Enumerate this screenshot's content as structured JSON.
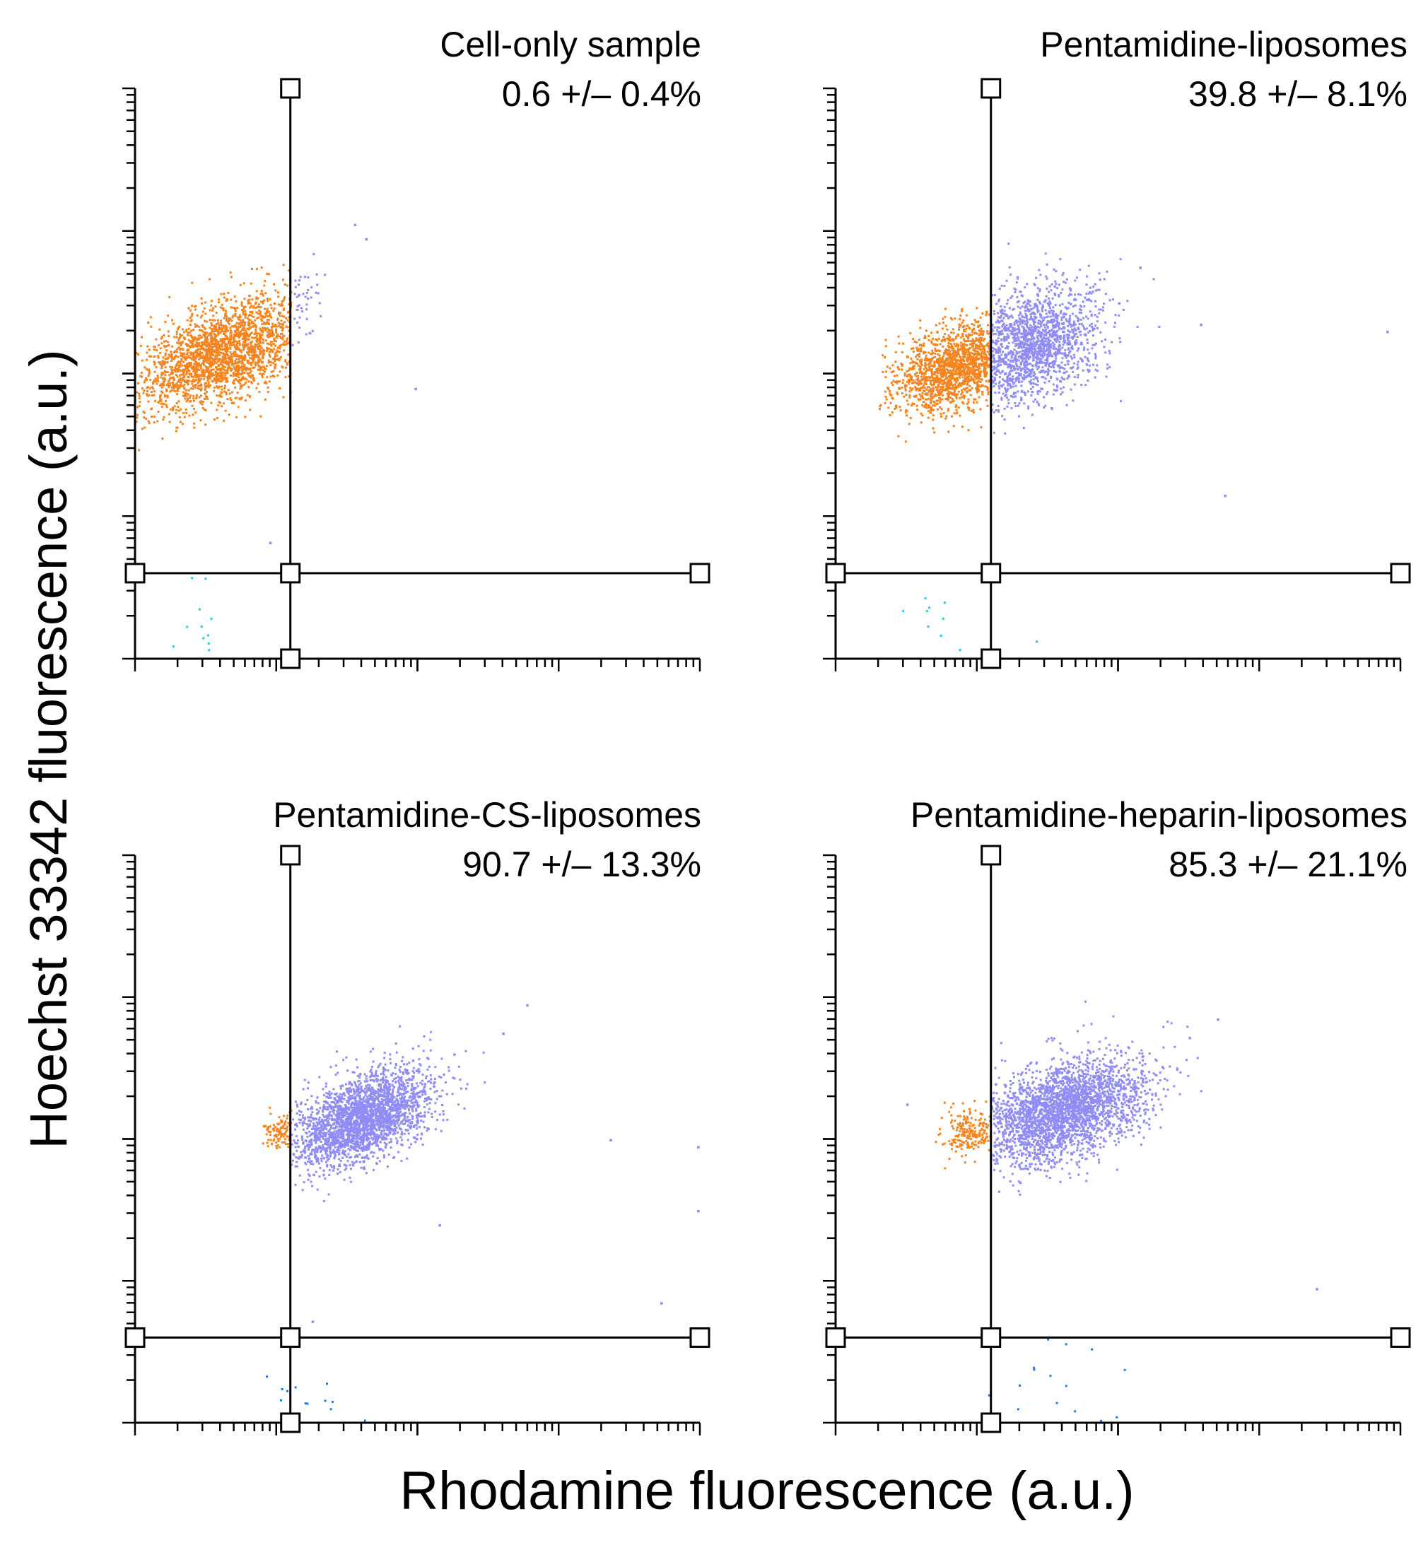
{
  "figure": {
    "x_axis_label": "Rhodamine fluorescence (a.u.)",
    "y_axis_label": "Hoechst 33342 fluorescence (a.u.)"
  },
  "colors": {
    "gate_negative": "#f5841f",
    "gate_positive": "#8f8cf5",
    "debris": "#1fcde0",
    "debris_dark": "#1a7ef0",
    "axis": "#000000"
  },
  "chart_data": [
    {
      "type": "scatter",
      "title": "Cell-only sample",
      "value_label": "0.6 +/– 0.4%",
      "x_scale": "log",
      "y_scale": "log",
      "x_range_decades": [
        0,
        4
      ],
      "y_range_decades": [
        0,
        4
      ],
      "gate_x_decade": 1.1,
      "gate_y_decade": 0.6,
      "populations": [
        {
          "name": "rhodamine-negative",
          "color": "gate_negative",
          "x_center": 0.62,
          "y_center": 2.15,
          "x_spread": 0.3,
          "y_spread": 0.17,
          "tilt": 0.35,
          "count": 2200,
          "x_min": 0.0,
          "x_max": 1.1
        },
        {
          "name": "rhodamine-positive",
          "color": "gate_positive",
          "x_center": 1.18,
          "y_center": 2.5,
          "x_spread": 0.08,
          "y_spread": 0.12,
          "tilt": 0.3,
          "count": 45,
          "x_min": 1.1,
          "x_max": 1.6
        },
        {
          "name": "debris",
          "color": "debris",
          "x_center": 0.45,
          "y_center": 0.22,
          "x_spread": 0.2,
          "y_spread": 0.12,
          "tilt": 0,
          "count": 12,
          "x_min": 0.1,
          "x_max": 1.3
        }
      ],
      "outliers": [
        [
          1.55,
          3.05
        ],
        [
          1.63,
          2.95
        ],
        [
          1.98,
          1.9
        ],
        [
          0.95,
          0.82
        ]
      ]
    },
    {
      "type": "scatter",
      "title": "Pentamidine-liposomes",
      "value_label": "39.8 +/– 8.1%",
      "x_scale": "log",
      "y_scale": "log",
      "x_range_decades": [
        0,
        4
      ],
      "y_range_decades": [
        0,
        4
      ],
      "gate_x_decade": 1.1,
      "gate_y_decade": 0.6,
      "populations": [
        {
          "name": "rhodamine-negative",
          "color": "gate_negative",
          "x_center": 0.85,
          "y_center": 2.05,
          "x_spread": 0.22,
          "y_spread": 0.14,
          "tilt": 0.3,
          "count": 1500,
          "x_min": 0.3,
          "x_max": 1.1
        },
        {
          "name": "rhodamine-positive",
          "color": "gate_positive",
          "x_center": 1.35,
          "y_center": 2.2,
          "x_spread": 0.25,
          "y_spread": 0.2,
          "tilt": 0.25,
          "count": 1600,
          "x_min": 1.1,
          "x_max": 2.4
        },
        {
          "name": "debris",
          "color": "debris",
          "x_center": 0.75,
          "y_center": 0.25,
          "x_spread": 0.25,
          "y_spread": 0.12,
          "tilt": 0,
          "count": 10,
          "x_min": 0.3,
          "x_max": 1.6
        }
      ],
      "outliers": [
        [
          2.15,
          2.75
        ],
        [
          3.9,
          2.3
        ],
        [
          2.75,
          1.15
        ],
        [
          2.58,
          2.35
        ],
        [
          2.0,
          2.5
        ]
      ]
    },
    {
      "type": "scatter",
      "title": "Pentamidine-CS-liposomes",
      "value_label": "90.7 +/– 13.3%",
      "x_scale": "log",
      "y_scale": "log",
      "x_range_decades": [
        0,
        4
      ],
      "y_range_decades": [
        0,
        4
      ],
      "gate_x_decade": 1.1,
      "gate_y_decade": 0.6,
      "populations": [
        {
          "name": "rhodamine-negative",
          "color": "gate_negative",
          "x_center": 1.02,
          "y_center": 2.05,
          "x_spread": 0.07,
          "y_spread": 0.06,
          "tilt": 0,
          "count": 110,
          "x_min": 0.9,
          "x_max": 1.1
        },
        {
          "name": "rhodamine-positive",
          "color": "gate_positive",
          "x_center": 1.6,
          "y_center": 2.15,
          "x_spread": 0.25,
          "y_spread": 0.15,
          "tilt": 0.35,
          "count": 2600,
          "x_min": 1.1,
          "x_max": 2.6
        },
        {
          "name": "debris",
          "color": "debris_dark",
          "x_center": 1.2,
          "y_center": 0.2,
          "x_spread": 0.25,
          "y_spread": 0.12,
          "tilt": 0,
          "count": 14,
          "x_min": 0.8,
          "x_max": 1.7
        }
      ],
      "outliers": [
        [
          2.77,
          2.95
        ],
        [
          2.6,
          2.75
        ],
        [
          3.36,
          2.0
        ],
        [
          3.98,
          1.95
        ],
        [
          3.98,
          1.5
        ],
        [
          3.72,
          0.85
        ],
        [
          2.15,
          1.4
        ],
        [
          3.98,
          0.67
        ],
        [
          1.25,
          0.72
        ]
      ]
    },
    {
      "type": "scatter",
      "title": "Pentamidine-heparin-liposomes",
      "value_label": "85.3 +/– 21.1%",
      "x_scale": "log",
      "y_scale": "log",
      "x_range_decades": [
        0,
        4
      ],
      "y_range_decades": [
        0,
        4
      ],
      "gate_x_decade": 1.1,
      "gate_y_decade": 0.6,
      "populations": [
        {
          "name": "rhodamine-negative",
          "color": "gate_negative",
          "x_center": 0.95,
          "y_center": 2.05,
          "x_spread": 0.1,
          "y_spread": 0.08,
          "tilt": 0,
          "count": 200,
          "x_min": 0.7,
          "x_max": 1.1
        },
        {
          "name": "rhodamine-positive",
          "color": "gate_positive",
          "x_center": 1.6,
          "y_center": 2.2,
          "x_spread": 0.3,
          "y_spread": 0.17,
          "tilt": 0.25,
          "count": 2700,
          "x_min": 1.1,
          "x_max": 2.8
        },
        {
          "name": "debris",
          "color": "debris_dark",
          "x_center": 1.6,
          "y_center": 0.3,
          "x_spread": 0.4,
          "y_spread": 0.15,
          "tilt": 0,
          "count": 16,
          "x_min": 1.05,
          "x_max": 2.2
        }
      ],
      "outliers": [
        [
          2.7,
          2.85
        ],
        [
          2.5,
          2.72
        ],
        [
          3.4,
          0.95
        ],
        [
          3.98,
          0.62
        ],
        [
          0.5,
          2.25
        ],
        [
          1.3,
          1.7
        ]
      ]
    }
  ]
}
